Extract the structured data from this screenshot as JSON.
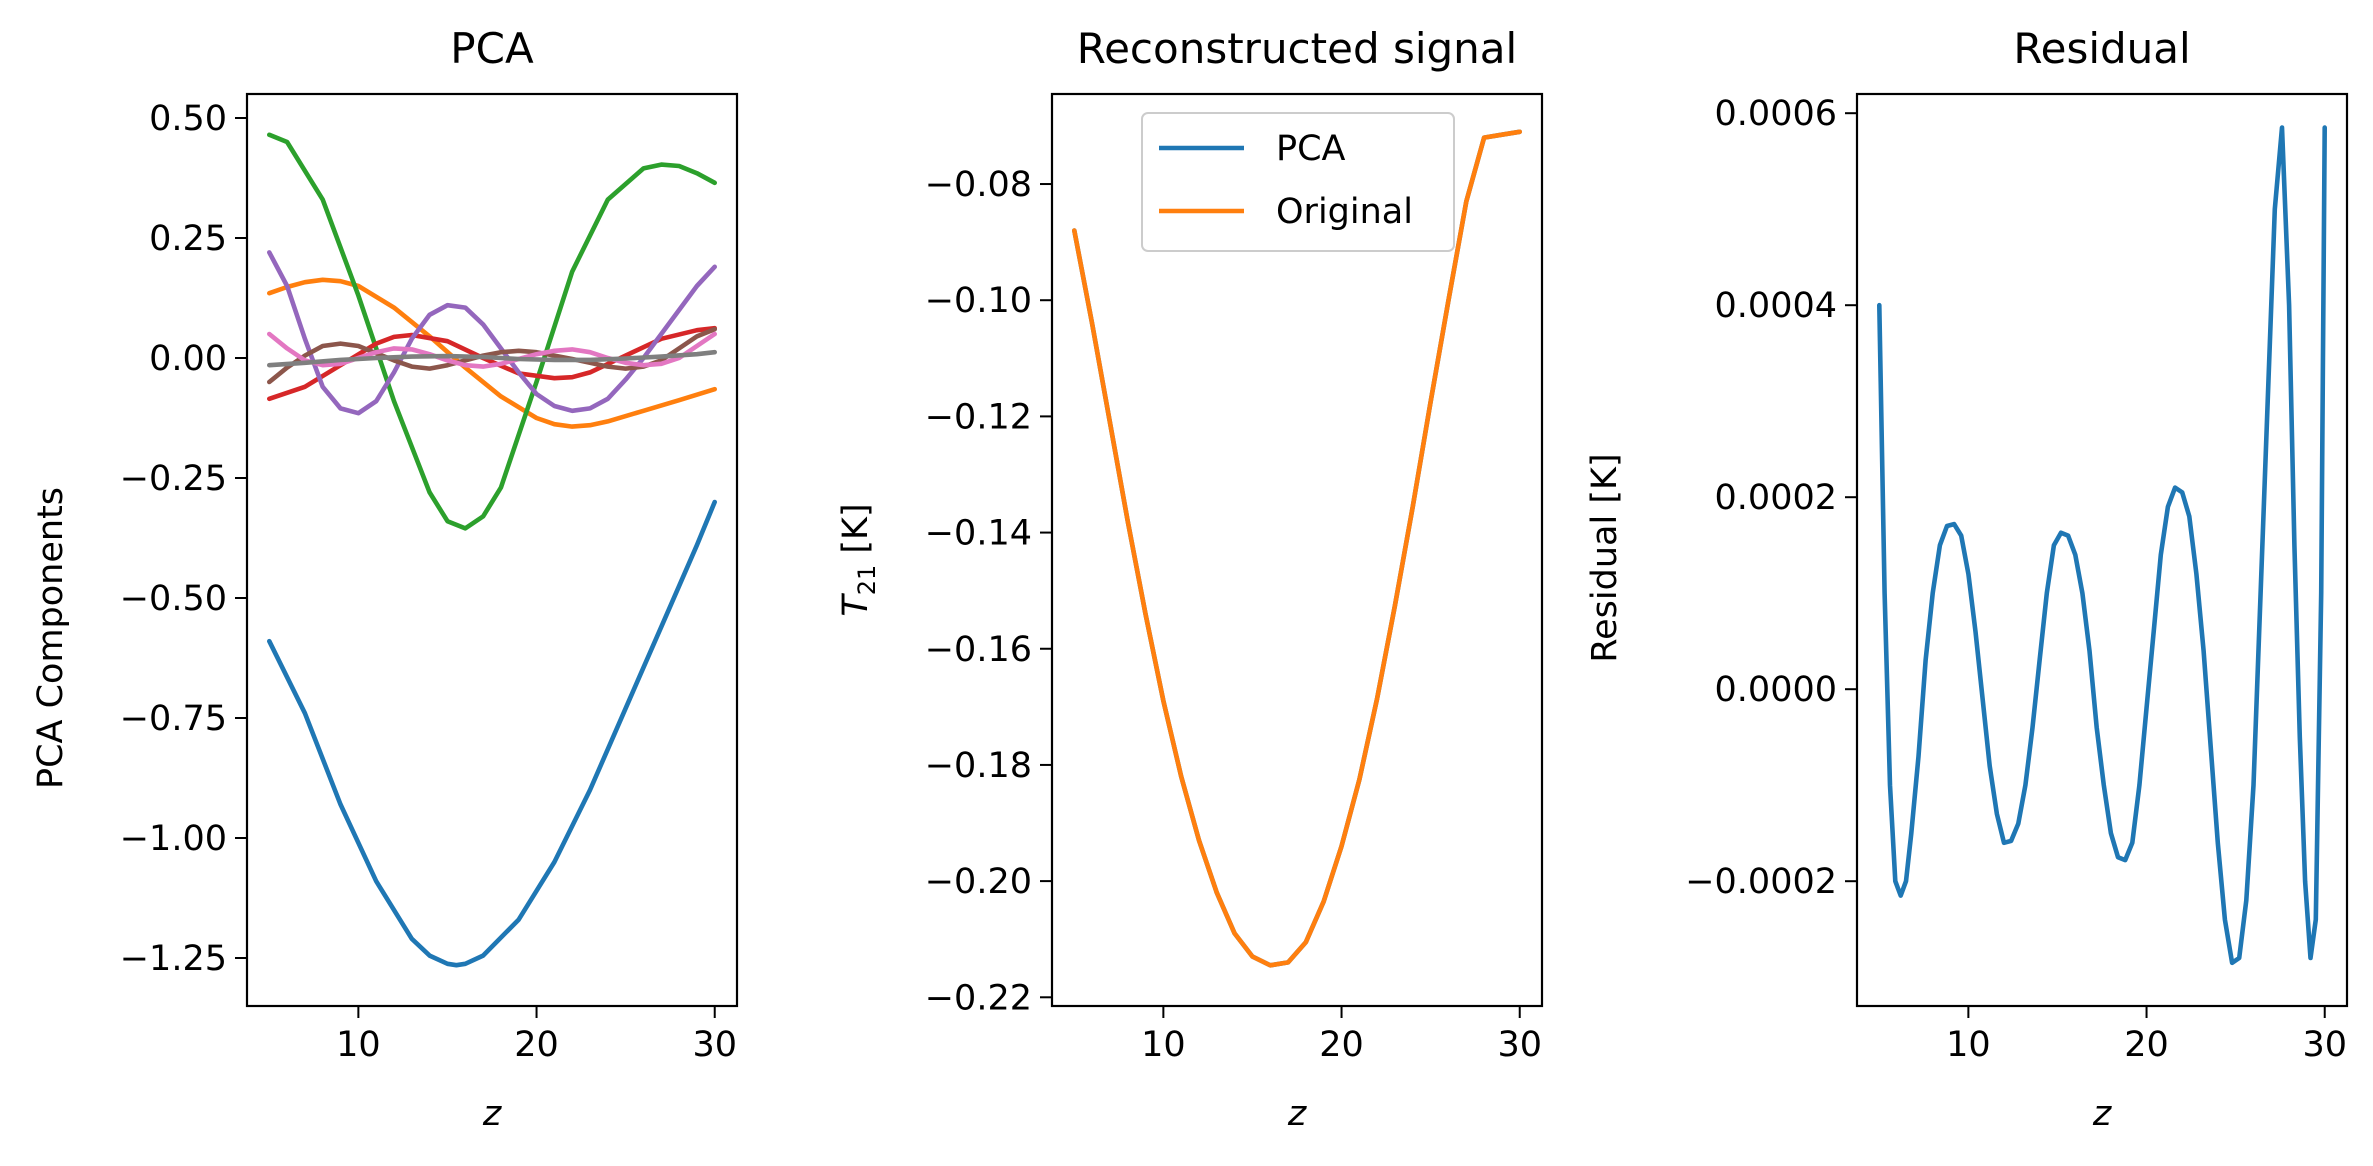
{
  "chart_data": [
    {
      "type": "line",
      "title": "PCA",
      "xlabel": "z",
      "ylabel": "PCA Components",
      "xlim": [
        3.75,
        31.25
      ],
      "ylim": [
        -1.35,
        0.55
      ],
      "xticks": [
        10,
        20,
        30
      ],
      "xtick_labels": [
        "10",
        "20",
        "30"
      ],
      "yticks": [
        0.5,
        0.25,
        0.0,
        -0.25,
        -0.5,
        -0.75,
        -1.0,
        -1.25
      ],
      "ytick_labels": [
        "0.50",
        "0.25",
        "0.00",
        "−0.25",
        "−0.50",
        "−0.75",
        "−1.00",
        "−1.25"
      ],
      "grid": false,
      "series": [
        {
          "color": "#1f77b4",
          "x": [
            5,
            7,
            9,
            11,
            13,
            14,
            15,
            15.5,
            16,
            17,
            19,
            21,
            23,
            25,
            27,
            29,
            30
          ],
          "values": [
            -0.59,
            -0.74,
            -0.93,
            -1.09,
            -1.21,
            -1.245,
            -1.262,
            -1.265,
            -1.262,
            -1.245,
            -1.17,
            -1.05,
            -0.9,
            -0.73,
            -0.56,
            -0.39,
            -0.3
          ]
        },
        {
          "color": "#ff7f0e",
          "x": [
            5,
            6,
            7,
            8,
            9,
            10,
            12,
            14,
            16,
            18,
            20,
            21,
            22,
            23,
            24,
            26,
            28,
            30
          ],
          "values": [
            0.135,
            0.148,
            0.158,
            0.163,
            0.16,
            0.15,
            0.105,
            0.045,
            -0.02,
            -0.08,
            -0.125,
            -0.138,
            -0.143,
            -0.14,
            -0.132,
            -0.11,
            -0.088,
            -0.065
          ]
        },
        {
          "color": "#2ca02c",
          "x": [
            5,
            6,
            8,
            10,
            12,
            14,
            15,
            16,
            17,
            18,
            20,
            22,
            24,
            26,
            27,
            28,
            29,
            30
          ],
          "values": [
            0.465,
            0.45,
            0.33,
            0.13,
            -0.09,
            -0.28,
            -0.34,
            -0.355,
            -0.33,
            -0.27,
            -0.05,
            0.18,
            0.33,
            0.395,
            0.403,
            0.4,
            0.385,
            0.365
          ]
        },
        {
          "color": "#d62728",
          "x": [
            5,
            7,
            9,
            11,
            12,
            13,
            15,
            17,
            19,
            21,
            22,
            23,
            25,
            27,
            29,
            30
          ],
          "values": [
            -0.085,
            -0.06,
            -0.015,
            0.03,
            0.044,
            0.048,
            0.035,
            0.0,
            -0.032,
            -0.042,
            -0.04,
            -0.03,
            0.005,
            0.04,
            0.058,
            0.062
          ]
        },
        {
          "color": "#9467bd",
          "x": [
            5,
            6,
            7,
            8,
            9,
            10,
            11,
            12,
            13,
            14,
            15,
            16,
            17,
            18,
            19,
            20,
            21,
            22,
            23,
            24,
            25,
            26,
            27,
            28,
            29,
            30
          ],
          "values": [
            0.22,
            0.15,
            0.04,
            -0.06,
            -0.105,
            -0.115,
            -0.09,
            -0.03,
            0.04,
            0.09,
            0.11,
            0.105,
            0.07,
            0.02,
            -0.03,
            -0.075,
            -0.1,
            -0.11,
            -0.105,
            -0.085,
            -0.045,
            0.0,
            0.05,
            0.1,
            0.15,
            0.19
          ]
        },
        {
          "color": "#8c564b",
          "x": [
            5,
            6,
            7,
            8,
            9,
            10,
            11,
            12,
            13,
            14,
            15,
            16,
            17,
            18,
            19,
            20,
            21,
            22,
            23,
            24,
            25,
            26,
            27,
            28,
            29,
            30
          ],
          "values": [
            -0.05,
            -0.02,
            0.005,
            0.025,
            0.03,
            0.025,
            0.01,
            -0.005,
            -0.018,
            -0.022,
            -0.015,
            -0.005,
            0.005,
            0.012,
            0.015,
            0.012,
            0.005,
            -0.002,
            -0.01,
            -0.018,
            -0.022,
            -0.018,
            -0.005,
            0.02,
            0.045,
            0.06
          ]
        },
        {
          "color": "#e377c2",
          "x": [
            5,
            6,
            7,
            8,
            9,
            10,
            11,
            12,
            13,
            14,
            15,
            16,
            17,
            18,
            19,
            20,
            21,
            22,
            23,
            24,
            25,
            26,
            27,
            28,
            29,
            30
          ],
          "values": [
            0.05,
            0.02,
            -0.005,
            -0.015,
            -0.012,
            0.0,
            0.012,
            0.02,
            0.018,
            0.008,
            -0.005,
            -0.015,
            -0.018,
            -0.012,
            -0.002,
            0.008,
            0.015,
            0.018,
            0.012,
            0.0,
            -0.01,
            -0.015,
            -0.012,
            0.0,
            0.025,
            0.05
          ]
        },
        {
          "color": "#7f7f7f",
          "x": [
            5,
            7,
            9,
            11,
            13,
            15,
            17,
            19,
            21,
            23,
            25,
            27,
            29,
            30
          ],
          "values": [
            -0.015,
            -0.01,
            -0.004,
            0.0,
            0.003,
            0.004,
            0.002,
            -0.002,
            -0.004,
            -0.004,
            -0.001,
            0.003,
            0.008,
            0.012
          ]
        }
      ]
    },
    {
      "type": "line",
      "title": "Reconstructed signal",
      "xlabel": "z",
      "ylabel": "T21 [K]",
      "ylabel_main": "T",
      "ylabel_sub": "21",
      "ylabel_unit": " [K]",
      "xlim": [
        3.75,
        31.25
      ],
      "ylim": [
        -0.2215,
        -0.0645
      ],
      "xticks": [
        10,
        20,
        30
      ],
      "xtick_labels": [
        "10",
        "20",
        "30"
      ],
      "yticks": [
        -0.08,
        -0.1,
        -0.12,
        -0.14,
        -0.16,
        -0.18,
        -0.2,
        -0.22
      ],
      "ytick_labels": [
        "−0.08",
        "−0.10",
        "−0.12",
        "−0.14",
        "−0.16",
        "−0.18",
        "−0.20",
        "−0.22"
      ],
      "legend_position": "upper center",
      "grid": false,
      "series": [
        {
          "name": "PCA",
          "color": "#1f77b4",
          "x": [
            5,
            6,
            7,
            8,
            9,
            10,
            11,
            12,
            13,
            14,
            15,
            16,
            17,
            18,
            19,
            20,
            21,
            22,
            23,
            24,
            25,
            26,
            27,
            28,
            29,
            30
          ],
          "values": [
            -0.088,
            -0.104,
            -0.121,
            -0.138,
            -0.154,
            -0.169,
            -0.182,
            -0.193,
            -0.202,
            -0.209,
            -0.213,
            -0.2145,
            -0.214,
            -0.2105,
            -0.2035,
            -0.194,
            -0.1825,
            -0.1685,
            -0.1525,
            -0.1355,
            -0.1175,
            -0.1,
            -0.083,
            -0.072,
            -0.0715,
            -0.071
          ]
        },
        {
          "name": "Original",
          "color": "#ff7f0e",
          "x": [
            5,
            6,
            7,
            8,
            9,
            10,
            11,
            12,
            13,
            14,
            15,
            16,
            17,
            18,
            19,
            20,
            21,
            22,
            23,
            24,
            25,
            26,
            27,
            28,
            29,
            30
          ],
          "values": [
            -0.088,
            -0.104,
            -0.121,
            -0.138,
            -0.154,
            -0.169,
            -0.182,
            -0.193,
            -0.202,
            -0.209,
            -0.213,
            -0.2145,
            -0.214,
            -0.2105,
            -0.2035,
            -0.194,
            -0.1825,
            -0.1685,
            -0.1525,
            -0.1355,
            -0.1175,
            -0.1,
            -0.083,
            -0.072,
            -0.0715,
            -0.071
          ]
        }
      ]
    },
    {
      "type": "line",
      "title": "Residual",
      "xlabel": "z",
      "ylabel": "Residual [K]",
      "xlim": [
        3.75,
        31.25
      ],
      "ylim": [
        -0.00033,
        0.00062
      ],
      "xticks": [
        10,
        20,
        30
      ],
      "xtick_labels": [
        "10",
        "20",
        "30"
      ],
      "yticks": [
        0.0006,
        0.0004,
        0.0002,
        0.0,
        -0.0002
      ],
      "ytick_labels": [
        "0.0006",
        "0.0004",
        "0.0002",
        "0.0000",
        "−0.0002"
      ],
      "grid": false,
      "series": [
        {
          "color": "#1f77b4",
          "x": [
            5.0,
            5.3,
            5.6,
            5.9,
            6.2,
            6.5,
            6.8,
            7.2,
            7.6,
            8.0,
            8.4,
            8.8,
            9.2,
            9.6,
            10.0,
            10.4,
            10.8,
            11.2,
            11.6,
            12.0,
            12.4,
            12.8,
            13.2,
            13.6,
            14.0,
            14.4,
            14.8,
            15.2,
            15.6,
            16.0,
            16.4,
            16.8,
            17.2,
            17.6,
            18.0,
            18.4,
            18.8,
            19.2,
            19.6,
            20.0,
            20.4,
            20.8,
            21.2,
            21.6,
            22.0,
            22.4,
            22.8,
            23.2,
            23.6,
            24.0,
            24.4,
            24.8,
            25.2,
            25.6,
            26.0,
            26.4,
            26.8,
            27.2,
            27.6,
            28.0,
            28.3,
            28.6,
            28.9,
            29.2,
            29.5,
            29.8,
            30.0
          ],
          "values": [
            0.0004,
            0.0001,
            -0.0001,
            -0.0002,
            -0.000215,
            -0.0002,
            -0.00015,
            -7e-05,
            3e-05,
            0.0001,
            0.00015,
            0.00017,
            0.000172,
            0.00016,
            0.00012,
            6e-05,
            -1e-05,
            -8e-05,
            -0.00013,
            -0.00016,
            -0.000158,
            -0.00014,
            -0.0001,
            -4e-05,
            3e-05,
            0.0001,
            0.00015,
            0.000163,
            0.00016,
            0.00014,
            0.0001,
            4e-05,
            -4e-05,
            -0.0001,
            -0.00015,
            -0.000175,
            -0.000178,
            -0.00016,
            -0.0001,
            -2e-05,
            6e-05,
            0.00014,
            0.00019,
            0.00021,
            0.000205,
            0.00018,
            0.00012,
            4e-05,
            -6e-05,
            -0.00016,
            -0.00024,
            -0.000285,
            -0.00028,
            -0.00022,
            -0.0001,
            0.0001,
            0.0003,
            0.0005,
            0.000585,
            0.0004,
            0.00015,
            -5e-05,
            -0.0002,
            -0.00028,
            -0.00024,
            0.0001,
            0.000585
          ]
        }
      ]
    }
  ]
}
